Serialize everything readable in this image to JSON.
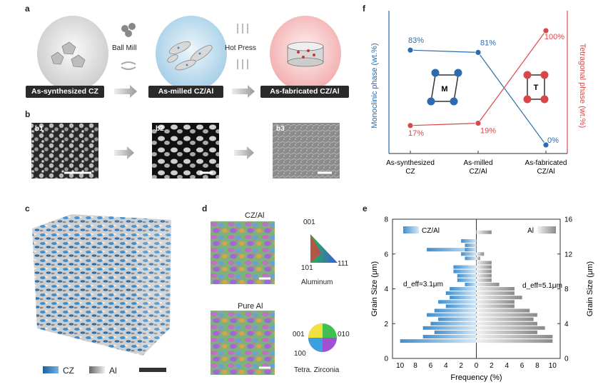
{
  "panels": {
    "a": "a",
    "b": "b",
    "c": "c",
    "d": "d",
    "e": "e",
    "f": "f"
  },
  "panel_a": {
    "step1": "As-synthesized CZ",
    "step2": "As-milled CZ/Al",
    "step3": "As-fabricated CZ/Al",
    "process1": "Ball Mill",
    "process2": "Hot Press"
  },
  "panel_b": {
    "b1": "b1",
    "b2": "b2",
    "b3": "b3"
  },
  "panel_c": {
    "legend_cz": "CZ",
    "legend_al": "Al"
  },
  "panel_d": {
    "title_top": "CZ/Al",
    "title_bottom": "Pure Al",
    "ipf_001": "001",
    "ipf_101": "101",
    "ipf_111": "111",
    "label_top": "Aluminum",
    "ipf2_001": "001",
    "ipf2_010": "010",
    "ipf2_100": "100",
    "label_bottom": "Tetra. Zirconia"
  },
  "chart_data": [
    {
      "type": "bar",
      "panel": "e",
      "orientation": "horizontal",
      "ylabel_left": "Grain Size (μm)",
      "ylabel_right": "Grain Size (μm)",
      "xlabel": "Frequency (%)",
      "left_yticks": [
        "0",
        "2",
        "4",
        "6",
        "8"
      ],
      "right_yticks": [
        "0",
        "4",
        "8",
        "12",
        "16"
      ],
      "left_xticks": [
        "10",
        "8",
        "6",
        "4",
        "2",
        "0"
      ],
      "right_xticks": [
        "2",
        "4",
        "6",
        "8",
        "10"
      ],
      "series": [
        {
          "name": "CZ/Al",
          "annotation": "d_eff=3.1μm",
          "y": [
            1.0,
            1.25,
            1.5,
            1.75,
            2.0,
            2.25,
            2.5,
            2.75,
            3.0,
            3.25,
            3.5,
            3.75,
            4.0,
            4.25,
            4.5,
            4.75,
            5.0,
            5.25,
            5.75,
            6.0,
            6.25,
            6.5,
            6.75,
            6.25
          ],
          "values": [
            10,
            7,
            5.5,
            7,
            6,
            5,
            6.5,
            5.5,
            4,
            5,
            3.5,
            4,
            3.5,
            1.5,
            2.5,
            2.5,
            3,
            3,
            1.5,
            2,
            6.5,
            1.5,
            2,
            1.5
          ]
        },
        {
          "name": "Al",
          "annotation": "d_eff=5.1μm",
          "y": [
            2.0,
            2.5,
            3.0,
            3.5,
            4.0,
            4.5,
            5.0,
            5.5,
            6.0,
            6.5,
            7.0,
            7.5,
            8.0,
            8.5,
            9.0,
            9.5,
            10.0,
            10.5,
            11.0,
            11.5,
            12.0,
            12.5,
            14.5
          ],
          "values": [
            10,
            10,
            8,
            9,
            8,
            7.5,
            8,
            7,
            5,
            5,
            6,
            5,
            5,
            3,
            2,
            2,
            2,
            2,
            2,
            0.5,
            1,
            0,
            2
          ]
        }
      ],
      "xlim": [
        -11,
        11
      ],
      "ylim_left": [
        0,
        8
      ],
      "ylim_right": [
        0,
        16
      ]
    },
    {
      "type": "line",
      "panel": "f",
      "categories": [
        "As-synthesized\nCZ",
        "As-milled\nCZ/Al",
        "As-fabricated\nCZ/Al"
      ],
      "ylabel_left": "Monoclinic phase (wt.%)",
      "ylabel_right": "Tetragonal phase (wt.%)",
      "series": [
        {
          "name": "Monoclinic phase",
          "values": [
            83,
            81,
            0
          ],
          "labels": [
            "83%",
            "81%",
            "0%"
          ],
          "color": "#2b6cb0"
        },
        {
          "name": "Tetragonal phase",
          "values": [
            17,
            19,
            100
          ],
          "labels": [
            "17%",
            "19%",
            "100%"
          ],
          "color": "#d94848"
        }
      ],
      "ylim": [
        0,
        100
      ],
      "insets": {
        "left": "M",
        "right": "T"
      }
    }
  ],
  "colors": {
    "cz_blue": "#3f8fd0",
    "al_gray": "#9a9a9a",
    "mono_blue": "#2b6cb0",
    "tetra_red": "#d94848"
  }
}
